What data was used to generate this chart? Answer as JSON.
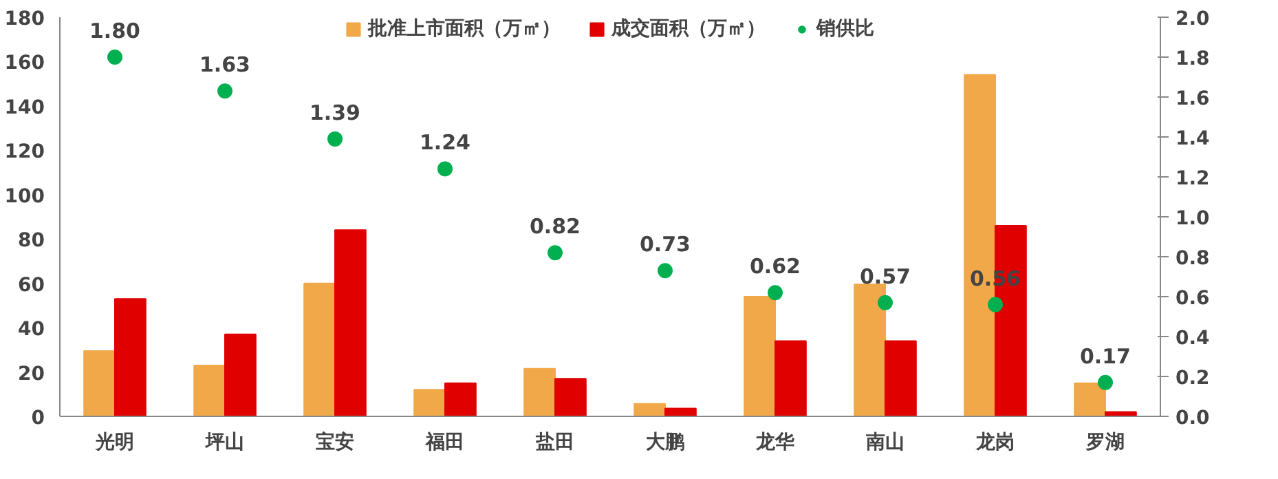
{
  "chart_data": {
    "type": "bar",
    "categories": [
      "光明",
      "坪山",
      "宝安",
      "福田",
      "盐田",
      "大鹏",
      "龙华",
      "南山",
      "龙岗",
      "罗湖"
    ],
    "series": [
      {
        "name": "批准上市面积（万㎡）",
        "color": "#f0a848",
        "values": [
          29.5,
          23,
          60,
          12,
          21.5,
          5.7,
          54,
          59.5,
          154,
          15
        ]
      },
      {
        "name": "成交面积（万㎡）",
        "color": "#e00000",
        "values": [
          53,
          37,
          84,
          15,
          17,
          3.6,
          34,
          34,
          86,
          2
        ]
      },
      {
        "name": "销供比",
        "type": "scatter",
        "axis": "y2",
        "color": "#00b050",
        "marker": "circle",
        "values": [
          1.8,
          1.63,
          1.39,
          1.24,
          0.82,
          0.73,
          0.62,
          0.57,
          0.56,
          0.17
        ],
        "value_labels": [
          "1.80",
          "1.63",
          "1.39",
          "1.24",
          "0.82",
          "0.73",
          "0.62",
          "0.57",
          "0.56",
          "0.17"
        ]
      }
    ],
    "ylim": [
      0,
      180
    ],
    "yticks": [
      0,
      20,
      40,
      60,
      80,
      100,
      120,
      140,
      160,
      180
    ],
    "y2lim": [
      0,
      2.0
    ],
    "y2ticks": [
      {
        "value": 0,
        "label": "0.0"
      },
      {
        "value": 0.2,
        "label": "0.2"
      },
      {
        "value": 0.4,
        "label": "0.4"
      },
      {
        "value": 0.6,
        "label": "0.6"
      },
      {
        "value": 0.8,
        "label": "0.8"
      },
      {
        "value": 1.0,
        "label": "1.0"
      },
      {
        "value": 1.2,
        "label": "1.2"
      },
      {
        "value": 1.4,
        "label": "1.4"
      },
      {
        "value": 1.6,
        "label": "1.6"
      },
      {
        "value": 1.8,
        "label": "1.8"
      },
      {
        "value": 2.0,
        "label": "2.0"
      }
    ],
    "grid": false,
    "legend": "top"
  }
}
